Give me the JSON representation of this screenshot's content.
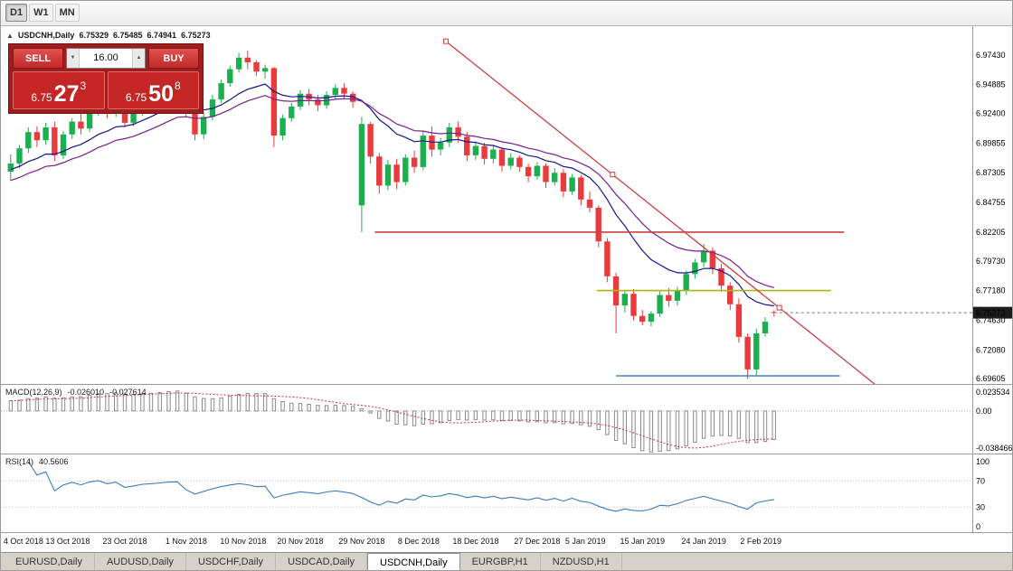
{
  "toolbar": {
    "timeframes": [
      {
        "label": "D1",
        "active": true
      },
      {
        "label": "W1",
        "active": false
      },
      {
        "label": "MN",
        "active": false
      }
    ]
  },
  "chart_header": {
    "toggle_icon": "▲",
    "symbol_period": "USDCNH,Daily",
    "open": "6.75329",
    "high": "6.75485",
    "low": "6.74941",
    "close": "6.75273"
  },
  "trade_panel": {
    "sell_label": "SELL",
    "buy_label": "BUY",
    "volume": "16.00",
    "decrement_icon": "▼",
    "increment_icon": "▲",
    "sell_price": {
      "prefix": "6.75",
      "pips": "27",
      "sup": "3"
    },
    "buy_price": {
      "prefix": "6.75",
      "pips": "50",
      "sup": "8"
    }
  },
  "price_axis": {
    "labels": [
      "6.97430",
      "6.94885",
      "6.92400",
      "6.89855",
      "6.87305",
      "6.84755",
      "6.82205",
      "6.79730",
      "6.77180",
      "6.74630",
      "6.72080",
      "6.69605"
    ],
    "current_price": "6.75273"
  },
  "date_axis": {
    "labels": [
      {
        "text": "4 Oct 2018",
        "i": 0
      },
      {
        "text": "13 Oct 2018",
        "i": 6.5
      },
      {
        "text": "23 Oct 2018",
        "i": 13
      },
      {
        "text": "1 Nov 2018",
        "i": 20
      },
      {
        "text": "10 Nov 2018",
        "i": 26.5
      },
      {
        "text": "20 Nov 2018",
        "i": 33
      },
      {
        "text": "29 Nov 2018",
        "i": 40
      },
      {
        "text": "8 Dec 2018",
        "i": 46.5
      },
      {
        "text": "18 Dec 2018",
        "i": 53
      },
      {
        "text": "27 Dec 2018",
        "i": 60
      },
      {
        "text": "5 Jan 2019",
        "i": 65.5
      },
      {
        "text": "15 Jan 2019",
        "i": 72
      },
      {
        "text": "24 Jan 2019",
        "i": 79
      },
      {
        "text": "2 Feb 2019",
        "i": 85.5
      }
    ]
  },
  "indicator_labels": {
    "macd": {
      "name": "MACD(12,26,9)",
      "main_value": "-0.026010",
      "signal_value": "-0.027614",
      "axis": [
        "0.023534",
        "0.00",
        "-0.038466"
      ]
    },
    "rsi": {
      "name": "RSI(14)",
      "value": "40.5606",
      "axis": [
        "100",
        "70",
        "30",
        "0"
      ]
    }
  },
  "tabs": {
    "items": [
      {
        "label": "EURUSD,Daily",
        "active": false
      },
      {
        "label": "AUDUSD,Daily",
        "active": false
      },
      {
        "label": "USDCHF,Daily",
        "active": false
      },
      {
        "label": "USDCAD,Daily",
        "active": false
      },
      {
        "label": "USDCNH,Daily",
        "active": true
      },
      {
        "label": "EURGBP,H1",
        "active": false
      },
      {
        "label": "NZDUSD,H1",
        "active": false
      }
    ]
  },
  "colors": {
    "bull": "#1CAF4F",
    "bear": "#E93B3B",
    "ma_fast": "#14148C",
    "ma_slow": "#781E8C",
    "object_red": "#CC4040",
    "hline_yellow": "#A9B519",
    "hline_blue": "#4086C8",
    "macd_bar_stroke": "#8A8A8A",
    "macd_signal": "#CC3333",
    "rsi_line": "#3B7BBE",
    "badge_bg": "#1c1c1c"
  },
  "chart_data": {
    "type": "candlestick",
    "title": "USDCNH,Daily",
    "ylim": [
      6.6915,
      6.999
    ],
    "candles": [
      [
        6.874,
        6.889,
        6.866,
        6.881
      ],
      [
        6.881,
        6.897,
        6.877,
        6.894
      ],
      [
        6.894,
        6.912,
        6.89,
        6.908
      ],
      [
        6.908,
        6.913,
        6.895,
        6.901
      ],
      [
        6.901,
        6.916,
        6.897,
        6.912
      ],
      [
        6.912,
        6.917,
        6.883,
        6.888
      ],
      [
        6.888,
        6.909,
        6.885,
        6.906
      ],
      [
        6.906,
        6.92,
        6.902,
        6.917
      ],
      [
        6.917,
        6.924,
        6.906,
        6.911
      ],
      [
        6.911,
        6.929,
        6.908,
        6.926
      ],
      [
        6.926,
        6.938,
        6.922,
        6.934
      ],
      [
        6.934,
        6.937,
        6.92,
        6.925
      ],
      [
        6.925,
        6.939,
        6.921,
        6.935
      ],
      [
        6.935,
        6.938,
        6.912,
        6.916
      ],
      [
        6.916,
        6.928,
        6.913,
        6.925
      ],
      [
        6.925,
        6.94,
        6.922,
        6.937
      ],
      [
        6.937,
        6.944,
        6.933,
        6.941
      ],
      [
        6.941,
        6.95,
        6.937,
        6.947
      ],
      [
        6.947,
        6.956,
        6.943,
        6.953
      ],
      [
        6.953,
        6.96,
        6.948,
        6.955
      ],
      [
        6.955,
        6.958,
        6.921,
        6.926
      ],
      [
        6.926,
        6.93,
        6.901,
        6.906
      ],
      [
        6.906,
        6.925,
        6.902,
        6.921
      ],
      [
        6.921,
        6.94,
        6.918,
        6.936
      ],
      [
        6.936,
        6.953,
        6.933,
        6.95
      ],
      [
        6.95,
        6.965,
        6.947,
        6.962
      ],
      [
        6.962,
        6.976,
        6.959,
        6.972
      ],
      [
        6.972,
        6.978,
        6.962,
        6.968
      ],
      [
        6.968,
        6.97,
        6.956,
        6.96
      ],
      [
        6.96,
        6.966,
        6.954,
        6.963
      ],
      [
        6.963,
        6.964,
        6.895,
        6.905
      ],
      [
        6.905,
        6.923,
        6.901,
        6.92
      ],
      [
        6.92,
        6.933,
        6.917,
        6.93
      ],
      [
        6.93,
        6.944,
        6.927,
        6.941
      ],
      [
        6.941,
        6.945,
        6.931,
        6.936
      ],
      [
        6.936,
        6.94,
        6.926,
        6.931
      ],
      [
        6.931,
        6.943,
        6.928,
        6.94
      ],
      [
        6.94,
        6.949,
        6.936,
        6.946
      ],
      [
        6.946,
        6.95,
        6.936,
        6.941
      ],
      [
        6.941,
        6.943,
        6.929,
        6.934
      ],
      [
        6.845,
        6.921,
        6.822,
        6.915
      ],
      [
        6.915,
        6.917,
        6.881,
        6.887
      ],
      [
        6.887,
        6.89,
        6.855,
        6.862
      ],
      [
        6.862,
        6.884,
        6.858,
        6.88
      ],
      [
        6.88,
        6.885,
        6.859,
        6.865
      ],
      [
        6.865,
        6.889,
        6.862,
        6.886
      ],
      [
        6.886,
        6.892,
        6.873,
        6.878
      ],
      [
        6.878,
        6.909,
        6.875,
        6.905
      ],
      [
        6.905,
        6.913,
        6.887,
        6.893
      ],
      [
        6.893,
        6.903,
        6.888,
        6.899
      ],
      [
        6.899,
        6.916,
        6.895,
        6.912
      ],
      [
        6.912,
        6.917,
        6.899,
        6.904
      ],
      [
        6.904,
        6.908,
        6.883,
        6.888
      ],
      [
        6.888,
        6.9,
        6.884,
        6.896
      ],
      [
        6.896,
        6.899,
        6.88,
        6.885
      ],
      [
        6.885,
        6.897,
        6.881,
        6.893
      ],
      [
        6.893,
        6.895,
        6.874,
        6.879
      ],
      [
        6.879,
        6.89,
        6.876,
        6.886
      ],
      [
        6.886,
        6.888,
        6.874,
        6.878
      ],
      [
        6.878,
        6.881,
        6.865,
        6.87
      ],
      [
        6.87,
        6.882,
        6.867,
        6.879
      ],
      [
        6.879,
        6.881,
        6.86,
        6.865
      ],
      [
        6.865,
        6.877,
        6.862,
        6.873
      ],
      [
        6.873,
        6.876,
        6.852,
        6.857
      ],
      [
        6.857,
        6.872,
        6.854,
        6.869
      ],
      [
        6.869,
        6.871,
        6.845,
        6.85
      ],
      [
        6.85,
        6.857,
        6.839,
        6.843
      ],
      [
        6.843,
        6.845,
        6.809,
        6.814
      ],
      [
        6.814,
        6.817,
        6.779,
        6.784
      ],
      [
        6.784,
        6.787,
        6.735,
        6.759
      ],
      [
        6.759,
        6.772,
        6.753,
        6.769
      ],
      [
        6.769,
        6.773,
        6.746,
        6.75
      ],
      [
        6.75,
        6.755,
        6.742,
        6.745
      ],
      [
        6.745,
        6.754,
        6.741,
        6.752
      ],
      [
        6.752,
        6.771,
        6.749,
        6.768
      ],
      [
        6.768,
        6.774,
        6.758,
        6.763
      ],
      [
        6.763,
        6.775,
        6.759,
        6.772
      ],
      [
        6.772,
        6.789,
        6.768,
        6.786
      ],
      [
        6.786,
        6.799,
        6.782,
        6.796
      ],
      [
        6.796,
        6.812,
        6.792,
        6.806
      ],
      [
        6.806,
        6.809,
        6.786,
        6.791
      ],
      [
        6.791,
        6.795,
        6.771,
        6.776
      ],
      [
        6.776,
        6.779,
        6.755,
        6.76
      ],
      [
        6.76,
        6.765,
        6.727,
        6.732
      ],
      [
        6.732,
        6.735,
        6.696,
        6.704
      ],
      [
        6.704,
        6.739,
        6.699,
        6.735
      ],
      [
        6.735,
        6.749,
        6.732,
        6.745
      ],
      [
        6.75329,
        6.75485,
        6.74941,
        6.75273
      ]
    ],
    "overlays": {
      "moving_averages": [
        {
          "name": "ma-fast",
          "period": 13,
          "type": "ema"
        },
        {
          "name": "ma-slow",
          "period": 21,
          "type": "ema"
        }
      ],
      "trendline": {
        "from": {
          "i": 49.6,
          "price": 6.986
        },
        "to": {
          "i": 87.6,
          "price": 6.757
        },
        "ray_i": 100
      },
      "hlines": [
        {
          "price": 6.82205,
          "color_key": "object_red",
          "from_i": 41.5,
          "to_i": 95
        },
        {
          "price": 6.7718,
          "color_key": "hline_yellow",
          "from_i": 66.8,
          "to_i": 93.5
        },
        {
          "price": 6.6985,
          "color_key": "hline_blue",
          "from_i": 69,
          "to_i": 94.5
        }
      ]
    },
    "indicators": {
      "macd": {
        "fast": 12,
        "slow": 26,
        "signal": 9,
        "last_main": -0.02601,
        "last_signal": -0.027614,
        "axis_max": 0.023534,
        "axis_min": -0.038466
      },
      "rsi": {
        "period": 14,
        "last_value": 40.5606,
        "levels": [
          70,
          30
        ],
        "ylim": [
          0,
          100
        ]
      }
    }
  }
}
